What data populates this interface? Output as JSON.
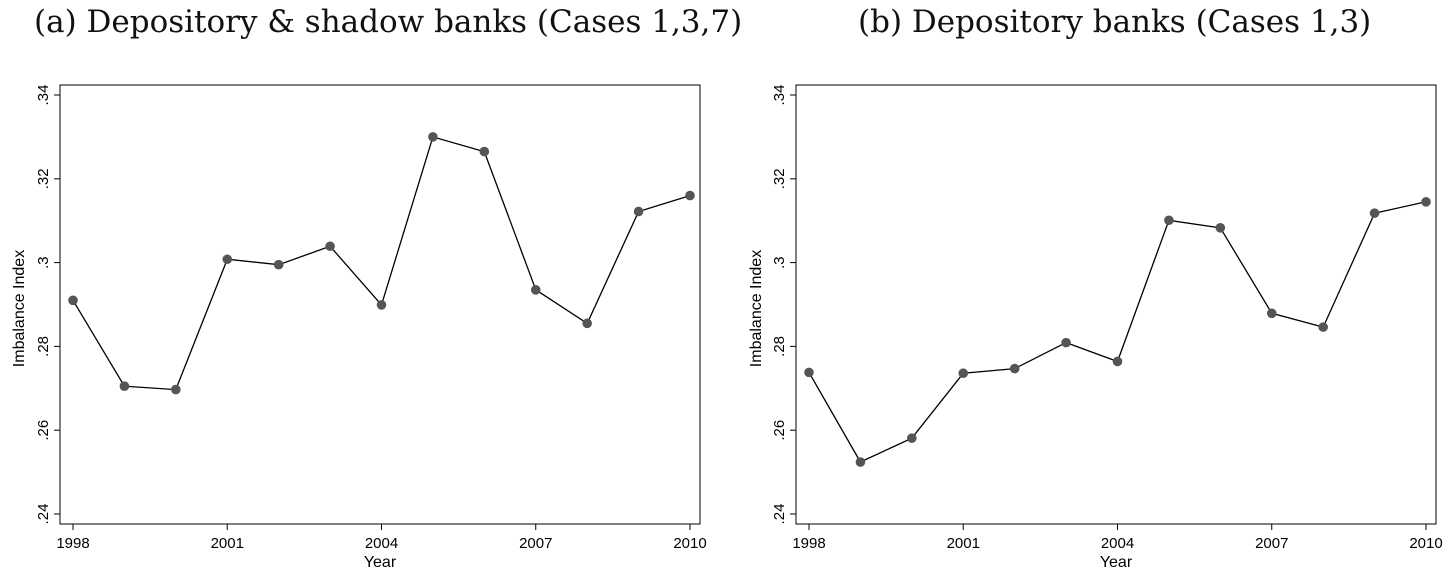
{
  "chart_data": [
    {
      "type": "line",
      "title": "(a) Depository & shadow banks (Cases 1,3,7)",
      "xlabel": "Year",
      "ylabel": "Imbalance Index",
      "x": [
        1998,
        1999,
        2000,
        2001,
        2002,
        2003,
        2004,
        2005,
        2006,
        2007,
        2008,
        2009,
        2010
      ],
      "values": [
        0.291,
        0.2705,
        0.2697,
        0.3008,
        0.2995,
        0.3039,
        0.2899,
        0.33,
        0.3265,
        0.2935,
        0.2855,
        0.3122,
        0.316
      ],
      "xticks": [
        "1998",
        "2001",
        "2004",
        "2007",
        "2010"
      ],
      "yticks": [
        ".24",
        ".26",
        ".28",
        ".3",
        ".32",
        ".34"
      ],
      "xlim": [
        1998,
        2010
      ],
      "ylim": [
        0.24,
        0.34
      ],
      "grid": false,
      "line_color": "#000000",
      "marker_color": "#555555"
    },
    {
      "type": "line",
      "title": "(b) Depository banks (Cases 1,3)",
      "xlabel": "Year",
      "ylabel": "Imbalance Index",
      "x": [
        1998,
        1999,
        2000,
        2001,
        2002,
        2003,
        2004,
        2005,
        2006,
        2007,
        2008,
        2009,
        2010
      ],
      "values": [
        0.2738,
        0.2524,
        0.2581,
        0.2736,
        0.2747,
        0.2809,
        0.2764,
        0.3101,
        0.3083,
        0.2879,
        0.2846,
        0.3118,
        0.3145
      ],
      "xticks": [
        "1998",
        "2001",
        "2004",
        "2007",
        "2010"
      ],
      "yticks": [
        ".24",
        ".26",
        ".28",
        ".3",
        ".32",
        ".34"
      ],
      "xlim": [
        1998,
        2010
      ],
      "ylim": [
        0.24,
        0.34
      ],
      "grid": false,
      "line_color": "#000000",
      "marker_color": "#555555"
    }
  ]
}
